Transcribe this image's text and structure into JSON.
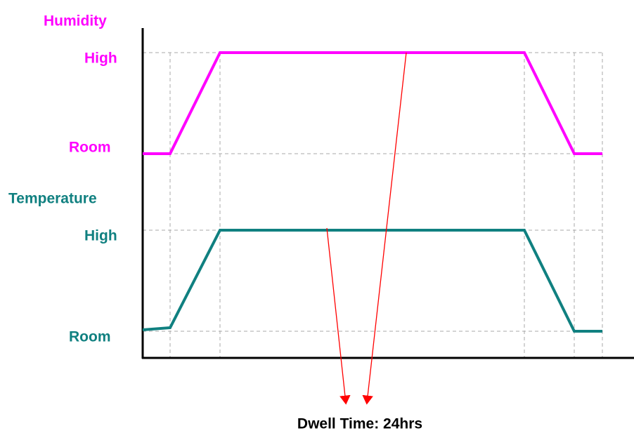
{
  "humidity": {
    "title": "Humidity",
    "high": "High",
    "room": "Room"
  },
  "temperature": {
    "title": "Temperature",
    "high": "High",
    "room": "Room"
  },
  "annotation": "Dwell Time: 24hrs"
}
